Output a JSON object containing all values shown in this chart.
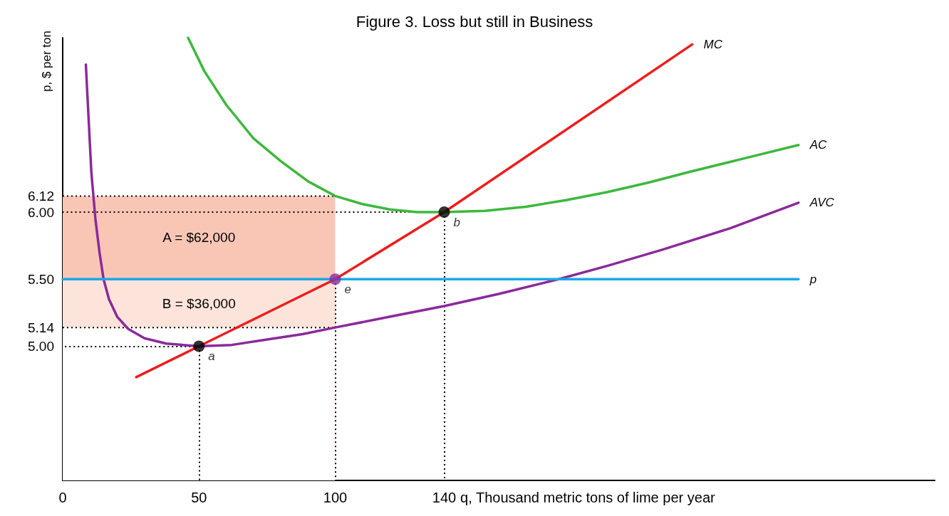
{
  "chart_data": {
    "type": "line",
    "title": "Figure 3. Loss but still in Business",
    "xlabel": "q, Thousand metric tons of lime per year",
    "ylabel": "p, $ per ton",
    "xlim": [
      0,
      320
    ],
    "xticks": [
      0,
      50,
      100,
      140
    ],
    "ylim": [
      4.0,
      7.3
    ],
    "yticks": [
      {
        "value": 5.0,
        "label": "5.00"
      },
      5.14,
      {
        "value": 5.5,
        "label": "5.50"
      },
      {
        "value": 6.0,
        "label": "6.00"
      },
      6.12
    ],
    "grid": false,
    "legend": false,
    "marker": "none",
    "series": [
      {
        "type": "area",
        "color": "#f9c6b6",
        "x": [
          0,
          100
        ],
        "values": [
          6.12,
          6.12
        ]
      },
      {
        "type": "area",
        "color": "#fde4da",
        "x": [
          0,
          100
        ],
        "values": [
          5.5,
          5.5
        ]
      },
      {
        "type": "area",
        "color": "#ffffff",
        "x": [
          0,
          100
        ],
        "values": [
          5.14,
          5.14
        ]
      },
      {
        "name": "MC",
        "color": "#ee1c1c",
        "x": [
          27,
          50,
          100,
          140,
          231
        ],
        "values": [
          4.77,
          5.0,
          5.5,
          6.0,
          7.25
        ]
      },
      {
        "name": "AC",
        "color": "#3db83d",
        "x": [
          46,
          52,
          60,
          70,
          80,
          90,
          100,
          110,
          120,
          130,
          140,
          155,
          170,
          185,
          200,
          215,
          230,
          250,
          270
        ],
        "values": [
          7.3,
          7.05,
          6.8,
          6.55,
          6.38,
          6.23,
          6.12,
          6.06,
          6.02,
          6.0,
          6.0,
          6.01,
          6.04,
          6.09,
          6.15,
          6.22,
          6.3,
          6.4,
          6.5
        ]
      },
      {
        "name": "AVC",
        "color": "#8a2a9a",
        "x": [
          8.5,
          9.5,
          10.5,
          12,
          13.5,
          15,
          17,
          20,
          24,
          30,
          38,
          50,
          62,
          75,
          88,
          100,
          120,
          140,
          160,
          182,
          200,
          220,
          245,
          270
        ],
        "values": [
          7.1,
          6.7,
          6.3,
          5.95,
          5.7,
          5.5,
          5.35,
          5.22,
          5.13,
          5.06,
          5.02,
          5.0,
          5.01,
          5.05,
          5.09,
          5.14,
          5.22,
          5.3,
          5.39,
          5.5,
          5.6,
          5.72,
          5.88,
          6.07
        ]
      },
      {
        "name": "p",
        "color": "#1ca8e8",
        "x": [
          0,
          270
        ],
        "values": [
          5.5,
          5.5
        ]
      },
      {
        "type": "scatter",
        "marker": "circle",
        "x": [
          50,
          140,
          100
        ],
        "values": [
          5.0,
          6.0,
          5.5
        ],
        "colors": [
          "#000000",
          "#000000",
          "#8a2a9a"
        ],
        "value_labels": [
          "a",
          "b",
          "e"
        ]
      }
    ],
    "annotations": [
      "A = $62,000",
      "B = $36,000"
    ]
  }
}
